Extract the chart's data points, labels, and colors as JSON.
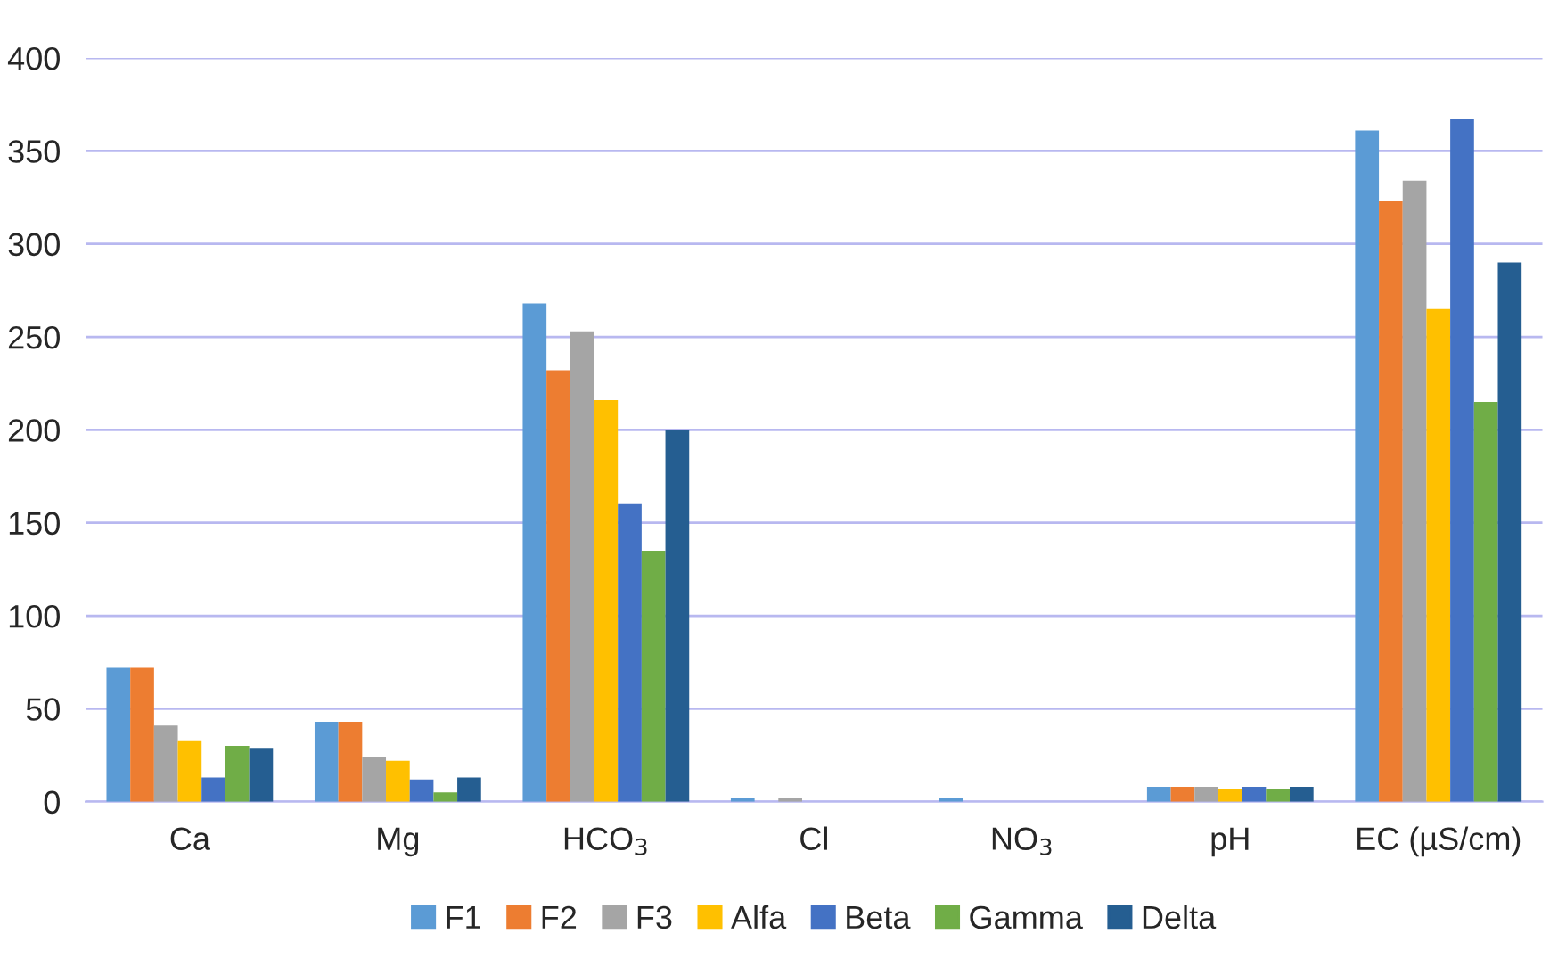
{
  "chart_data": {
    "type": "bar",
    "categories": [
      "Ca",
      "Mg",
      "HCO$_{3}$",
      "Cl",
      "NO$_{3}$",
      "pH",
      "EC (µS/cm)"
    ],
    "series": [
      {
        "name": "F1",
        "color": "#5b9bd5",
        "values": [
          72,
          43,
          268,
          2,
          2,
          8,
          361
        ]
      },
      {
        "name": "F2",
        "color": "#ed7d31",
        "values": [
          72,
          43,
          232,
          null,
          null,
          8,
          323
        ]
      },
      {
        "name": "F3",
        "color": "#a5a5a5",
        "values": [
          41,
          24,
          253,
          2,
          null,
          8,
          334
        ]
      },
      {
        "name": "Alfa",
        "color": "#ffc000",
        "values": [
          33,
          22,
          216,
          null,
          null,
          7,
          265
        ]
      },
      {
        "name": "Beta",
        "color": "#4472c4",
        "values": [
          13,
          12,
          160,
          null,
          null,
          8,
          367
        ]
      },
      {
        "name": "Gamma",
        "color": "#70ad47",
        "values": [
          30,
          5,
          135,
          null,
          null,
          7,
          215
        ]
      },
      {
        "name": "Delta",
        "color": "#255e91",
        "values": [
          29,
          13,
          200,
          null,
          null,
          8,
          290
        ]
      }
    ],
    "ylim": [
      0,
      400
    ],
    "yticks": [
      0,
      50,
      100,
      150,
      200,
      250,
      300,
      350,
      400
    ],
    "grid": "y",
    "legend": "bottom"
  }
}
